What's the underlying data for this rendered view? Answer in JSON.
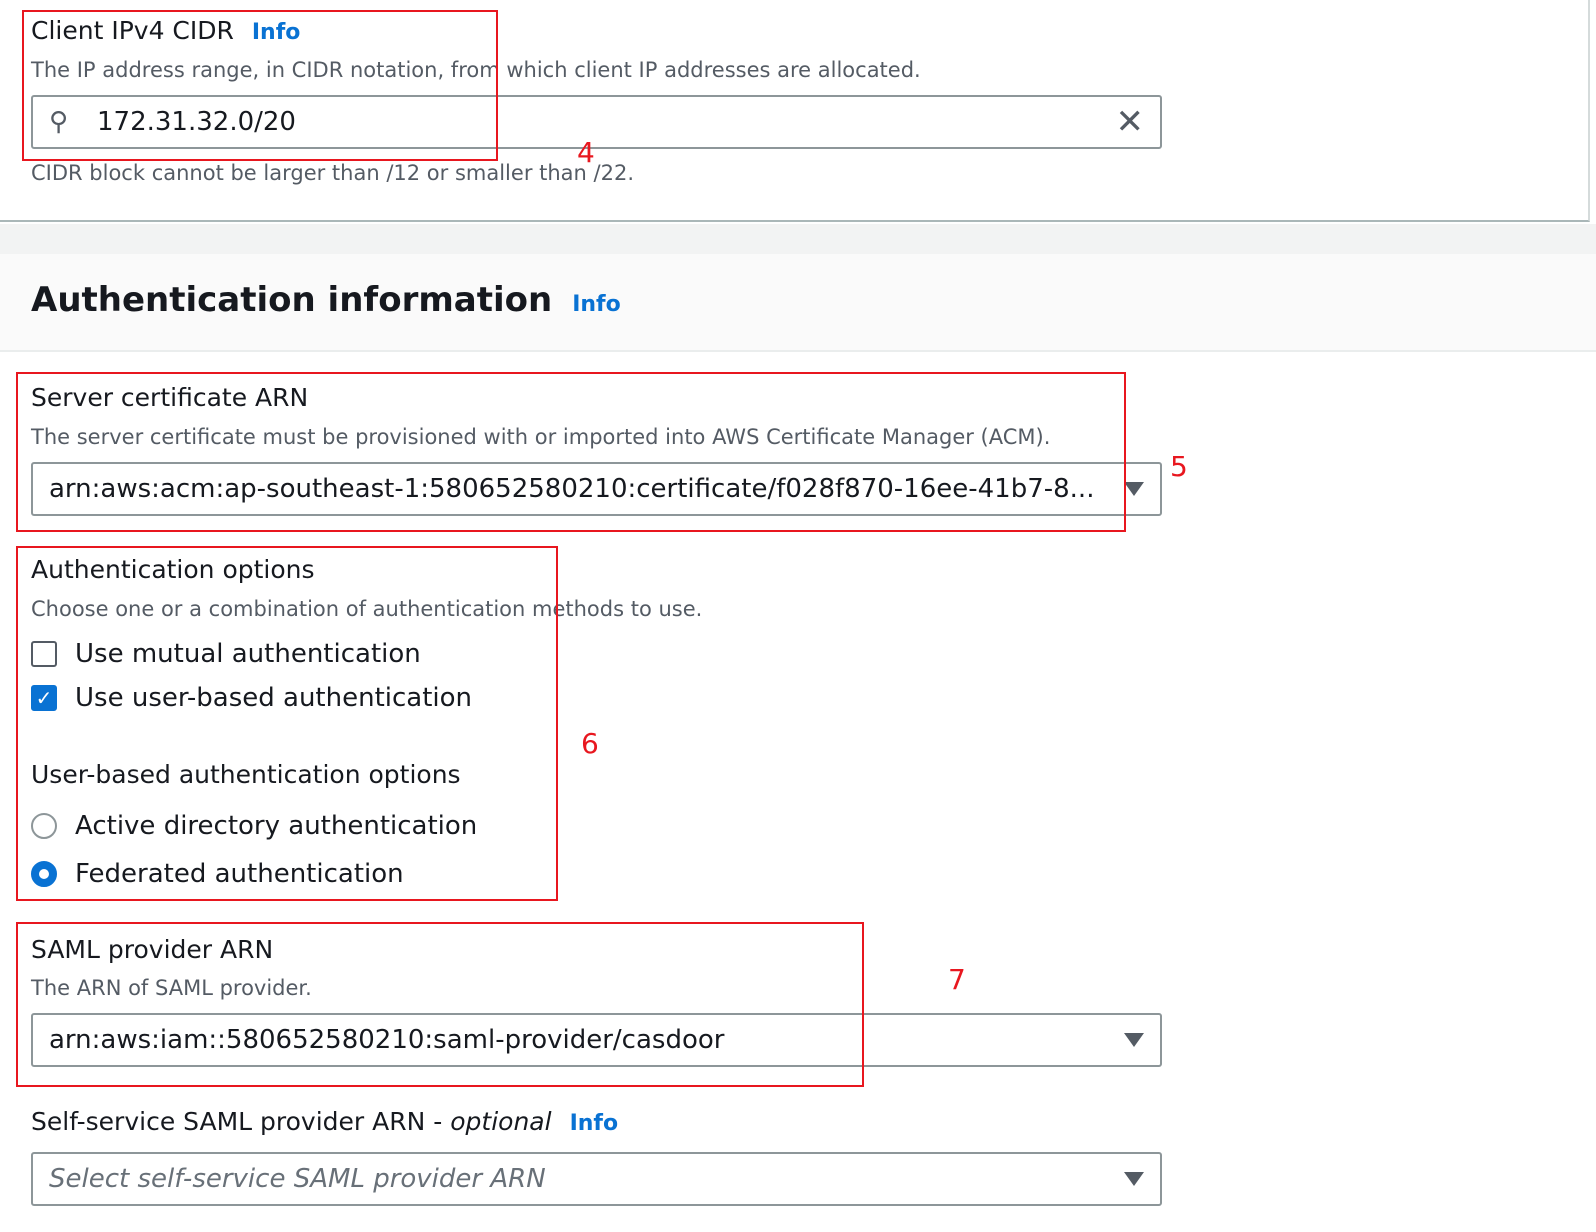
{
  "client_cidr": {
    "label": "Client IPv4 CIDR",
    "info": "Info",
    "description": "The IP address range, in CIDR notation, from which client IP addresses are allocated.",
    "value": "172.31.32.0/20",
    "constraint": "CIDR block cannot be larger than /12 or smaller than /22."
  },
  "auth_section": {
    "title": "Authentication information",
    "info": "Info"
  },
  "server_cert": {
    "label": "Server certificate ARN",
    "description": "The server certificate must be provisioned with or imported into AWS Certificate Manager (ACM).",
    "value": "arn:aws:acm:ap-southeast-1:580652580210:certificate/f028f870-16ee-41b7-8..."
  },
  "auth_options": {
    "label": "Authentication options",
    "description": "Choose one or a combination of authentication methods to use.",
    "checkboxes": [
      {
        "label": "Use mutual authentication",
        "checked": false
      },
      {
        "label": "Use user-based authentication",
        "checked": true
      }
    ],
    "user_based_label": "User-based authentication options",
    "radios": [
      {
        "label": "Active directory authentication",
        "selected": false
      },
      {
        "label": "Federated authentication",
        "selected": true
      }
    ]
  },
  "saml": {
    "label": "SAML provider ARN",
    "description": "The ARN of SAML provider.",
    "value": "arn:aws:iam::580652580210:saml-provider/casdoor"
  },
  "self_service_saml": {
    "label": "Self-service SAML provider ARN - ",
    "optional": "optional",
    "info": "Info",
    "placeholder": "Select self-service SAML provider ARN"
  },
  "annotations": [
    "4",
    "5",
    "6",
    "7"
  ],
  "colors": {
    "link": "#0972d3",
    "annotation": "#e8171f",
    "checked": "#0972d3"
  }
}
